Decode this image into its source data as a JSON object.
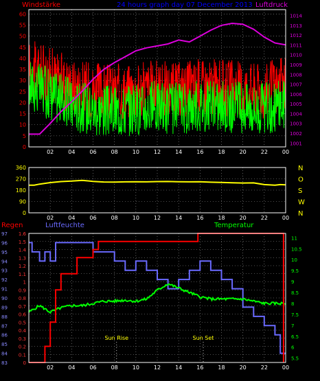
{
  "page_title": "24 hours graph day  07 December 2013",
  "colors": {
    "background": "#000000",
    "frame": "#ffffff",
    "grid": "#a0a0a0",
    "wind_avg": "#00ff00",
    "wind_gust": "#ff0000",
    "pressure": "#dd00dd",
    "direction": "#ffff00",
    "rain": "#ff0000",
    "humidity": "#6a6aff",
    "temperature": "#00ff00",
    "title": "#0000ff",
    "labels_yellow": "#ffff00"
  },
  "chart_data": [
    {
      "type": "line",
      "name": "wind-pressure",
      "title": "24 hours graph day  07 December 2013",
      "left_axis_label": "Windstärke",
      "right_axis_label": "Luftdruck",
      "x_ticks": [
        "02",
        "04",
        "06",
        "08",
        "10",
        "12",
        "14",
        "16",
        "18",
        "20",
        "22",
        "00"
      ],
      "y_left_ticks": [
        0,
        5,
        10,
        15,
        20,
        25,
        30,
        35,
        40,
        45,
        50,
        55,
        60
      ],
      "y_left_range": [
        0,
        62
      ],
      "y_right_ticks": [
        1001,
        1002,
        1003,
        1004,
        1005,
        1006,
        1007,
        1008,
        1009,
        1010,
        1011,
        1012,
        1013,
        1014
      ],
      "y_right_range": [
        1000.6,
        1014.6
      ],
      "x_range": [
        0,
        24
      ],
      "series": [
        {
          "role": "pressure",
          "axis": "right",
          "x": [
            0,
            1,
            2,
            3,
            4,
            5,
            6,
            7,
            8,
            9,
            10,
            11,
            12,
            13,
            14,
            15,
            16,
            17,
            18,
            19,
            20,
            21,
            22,
            23,
            24
          ],
          "values": [
            1001.9,
            1001.9,
            1003,
            1004.2,
            1005.2,
            1006.3,
            1007.5,
            1008.5,
            1009.2,
            1009.8,
            1010.4,
            1010.7,
            1010.9,
            1011.1,
            1011.5,
            1011.3,
            1011.9,
            1012.5,
            1013.0,
            1013.2,
            1013.1,
            1012.6,
            1011.8,
            1011.2,
            1011.0
          ]
        },
        {
          "role": "wind_avg_mean",
          "axis": "left",
          "x": [
            0,
            2,
            4,
            6,
            8,
            10,
            12,
            14,
            16,
            18,
            20,
            22,
            24
          ],
          "values": [
            28,
            24,
            19,
            17,
            16,
            17,
            18,
            17,
            19,
            18,
            18,
            17,
            20
          ]
        },
        {
          "role": "wind_gust_mean",
          "axis": "left",
          "x": [
            0,
            2,
            4,
            6,
            8,
            10,
            12,
            14,
            16,
            18,
            20,
            22,
            24
          ],
          "values": [
            33,
            30,
            25,
            23,
            22,
            23,
            24,
            23,
            25,
            24,
            24,
            23,
            25
          ]
        }
      ]
    },
    {
      "type": "line",
      "name": "wind-direction",
      "x_ticks": [
        "02",
        "04",
        "06",
        "08",
        "10",
        "12",
        "14",
        "16",
        "18",
        "20",
        "22",
        "00"
      ],
      "y_ticks": [
        0,
        90,
        180,
        270,
        360
      ],
      "y_range": [
        0,
        360
      ],
      "right_labels": [
        "N",
        "W",
        "S",
        "O",
        "N"
      ],
      "series": [
        {
          "role": "direction",
          "x": [
            0,
            0.5,
            1,
            2,
            3,
            4,
            5,
            6,
            7,
            8,
            9,
            10,
            11,
            12,
            13,
            14,
            15,
            16,
            17,
            18,
            19,
            20,
            21,
            22,
            23,
            23.5,
            24
          ],
          "values": [
            220,
            220,
            228,
            240,
            248,
            252,
            258,
            250,
            245,
            244,
            246,
            247,
            246,
            248,
            249,
            247,
            246,
            247,
            243,
            241,
            239,
            237,
            238,
            224,
            220,
            224,
            222
          ]
        }
      ]
    },
    {
      "type": "line",
      "name": "rain-humidity-temperature",
      "label_rain": "Regen",
      "label_humidity": "Luftfeuchte",
      "label_temperature": "Temperatur",
      "sunrise_label": "Sun Rise",
      "sunset_label": "Sun Set",
      "sunrise_hour": 8.2,
      "sunset_hour": 16.3,
      "x_ticks": [
        "02",
        "04",
        "06",
        "08",
        "10",
        "12",
        "14",
        "16",
        "18",
        "20",
        "22",
        "00"
      ],
      "rain_ticks": [
        "0",
        "0.1",
        "0.2",
        "0.3",
        "0.4",
        "0.5",
        "0.6",
        "0.7",
        "0.8",
        "0.9",
        "1",
        "1.1",
        "1.2",
        "1.3",
        "1.4",
        "1.5",
        "1.6"
      ],
      "rain_range": [
        0,
        1.6
      ],
      "humidity_ticks": [
        83,
        84,
        85,
        86,
        87,
        88,
        89,
        90,
        91,
        92,
        93,
        94,
        95,
        96,
        97
      ],
      "humidity_range": [
        83,
        97
      ],
      "temp_ticks": [
        "5.5",
        "6",
        "6.5",
        "7",
        "7.5",
        "8",
        "8.5",
        "9",
        "9.5",
        "10",
        "10.5",
        "11"
      ],
      "temp_range": [
        5.3,
        11.2
      ],
      "series": [
        {
          "role": "rain",
          "x": [
            0,
            1.5,
            1.5,
            2,
            2,
            2.5,
            2.5,
            3,
            3,
            4.5,
            4.5,
            6,
            6,
            6.5,
            6.5,
            15.8,
            15.8,
            23.8,
            23.8
          ],
          "values": [
            0,
            0,
            0.2,
            0.2,
            0.5,
            0.5,
            0.9,
            0.9,
            1.1,
            1.1,
            1.3,
            1.3,
            1.4,
            1.4,
            1.5,
            1.5,
            1.6,
            1.6,
            0
          ]
        },
        {
          "role": "humidity",
          "x": [
            0,
            0.3,
            0.3,
            1,
            1,
            1.5,
            1.5,
            2,
            2,
            2.5,
            2.5,
            6,
            6,
            8,
            8,
            9,
            9,
            10,
            10,
            11,
            11,
            12,
            12,
            13,
            13,
            14,
            14,
            15,
            15,
            16,
            16,
            17,
            17,
            18,
            18,
            19,
            19,
            20,
            20,
            21,
            21,
            22,
            22,
            23,
            23,
            23.5,
            23.5,
            24
          ],
          "values": [
            96,
            96,
            95,
            95,
            94,
            94,
            95,
            95,
            94,
            94,
            96,
            96,
            95,
            95,
            94,
            94,
            93,
            93,
            94,
            94,
            93,
            93,
            92,
            92,
            91,
            91,
            92,
            92,
            93,
            93,
            94,
            94,
            93,
            93,
            92,
            92,
            91,
            91,
            89,
            89,
            88,
            88,
            87,
            87,
            86,
            86,
            84,
            84
          ]
        },
        {
          "role": "temperature",
          "x": [
            0,
            1,
            2,
            3,
            4,
            5,
            6,
            7,
            8,
            9,
            10,
            11,
            12,
            13,
            14,
            15,
            16,
            17,
            18,
            19,
            20,
            21,
            22,
            23,
            24
          ],
          "values": [
            7.6,
            7.9,
            7.6,
            7.8,
            7.9,
            7.9,
            8.0,
            8.1,
            8.1,
            8.15,
            8.1,
            8.2,
            8.6,
            8.9,
            8.7,
            8.5,
            8.3,
            8.2,
            8.2,
            8.2,
            8.2,
            8.1,
            8.0,
            8.0,
            8.0
          ]
        }
      ]
    }
  ]
}
